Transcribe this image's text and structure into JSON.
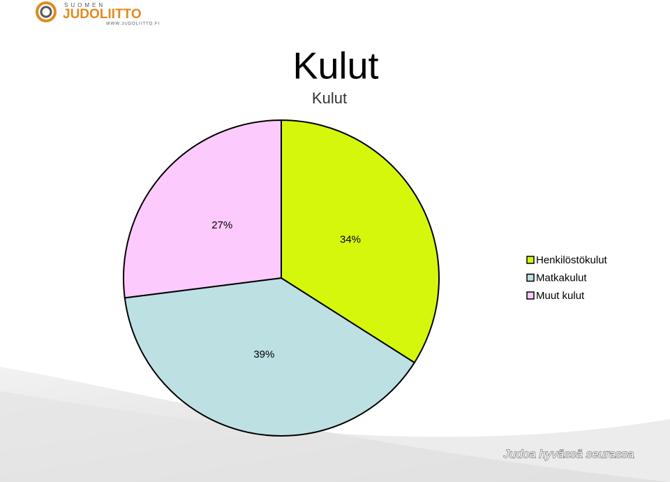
{
  "logo": {
    "top": "SUOMEN",
    "name": "JUDOLIITTO",
    "url": "WWW.JUDOLIITTO.FI"
  },
  "footer": "Judoa hyvässä seurassa",
  "chart_data": {
    "type": "pie",
    "title": "Kulut",
    "subtitle": "Kulut",
    "categories": [
      "Henkilöstökulut",
      "Matkakulut",
      "Muut kulut"
    ],
    "values": [
      34,
      39,
      27
    ],
    "value_labels": [
      "34%",
      "39%",
      "27%"
    ],
    "colors": [
      "#d5f70b",
      "#bde0e3",
      "#fdcafd"
    ],
    "legend": "right"
  }
}
